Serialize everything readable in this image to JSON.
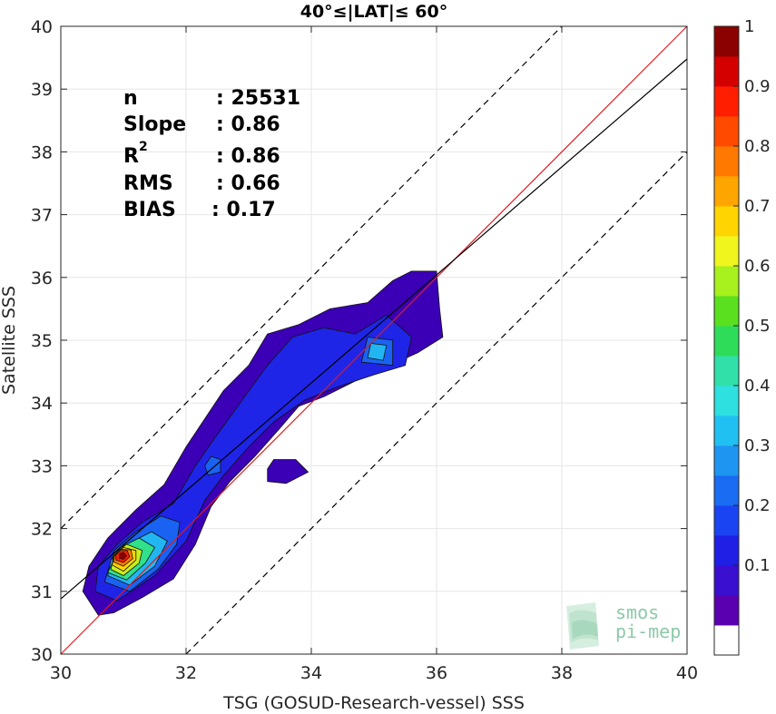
{
  "chart_data": {
    "type": "contour-scatter",
    "title": "40°≤|LAT|≤ 60°",
    "xlabel": "TSG (GOSUD-Research-vessel) SSS",
    "ylabel": "Satellite SSS",
    "xlim": [
      30,
      40
    ],
    "ylim": [
      30,
      40
    ],
    "xticks": [
      "30",
      "32",
      "34",
      "36",
      "38",
      "40"
    ],
    "yticks": [
      "30",
      "31",
      "32",
      "33",
      "34",
      "35",
      "36",
      "37",
      "38",
      "39",
      "40"
    ],
    "grid": true,
    "stats": [
      {
        "label": "n",
        "value": ": 25531"
      },
      {
        "label": "Slope",
        "value": ": 0.86"
      },
      {
        "label": "R",
        "sup": "2",
        "value": ": 0.86"
      },
      {
        "label": "RMS",
        "value": ": 0.66"
      },
      {
        "label": "BIAS",
        "value": ": 0.17"
      }
    ],
    "lines": [
      {
        "name": "one-to-one",
        "color": "#e31a1c",
        "style": "solid",
        "slope": 1,
        "intercept": 0
      },
      {
        "name": "regression",
        "color": "#000000",
        "style": "solid",
        "slope": 0.86,
        "intercept": 5.08
      },
      {
        "name": "upper-bound",
        "color": "#000000",
        "style": "dashed",
        "slope": 1,
        "intercept": 2.0
      },
      {
        "name": "lower-bound",
        "color": "#000000",
        "style": "dashed",
        "slope": 1,
        "intercept": -2.0
      }
    ],
    "density_contours": [
      {
        "level": 0.05,
        "color": "#3b00b5",
        "polygons": [
          [
            [
              30.35,
              31.0
            ],
            [
              30.6,
              30.62
            ],
            [
              30.85,
              30.66
            ],
            [
              31.3,
              30.9
            ],
            [
              31.8,
              31.2
            ],
            [
              32.15,
              31.75
            ],
            [
              32.4,
              32.35
            ],
            [
              32.7,
              32.75
            ],
            [
              33.1,
              33.15
            ],
            [
              33.5,
              33.6
            ],
            [
              33.8,
              33.95
            ],
            [
              34.2,
              34.1
            ],
            [
              34.7,
              34.35
            ],
            [
              35.15,
              34.55
            ],
            [
              35.7,
              34.8
            ],
            [
              36.1,
              35.05
            ],
            [
              36.05,
              35.5
            ],
            [
              36.0,
              36.1
            ],
            [
              35.6,
              36.1
            ],
            [
              35.3,
              35.95
            ],
            [
              34.9,
              35.6
            ],
            [
              34.3,
              35.5
            ],
            [
              33.8,
              35.25
            ],
            [
              33.3,
              35.1
            ],
            [
              33.0,
              34.6
            ],
            [
              32.6,
              34.2
            ],
            [
              32.3,
              33.75
            ],
            [
              32.0,
              33.3
            ],
            [
              31.65,
              32.7
            ],
            [
              31.2,
              32.3
            ],
            [
              30.75,
              31.85
            ],
            [
              30.45,
              31.4
            ],
            [
              30.35,
              31.0
            ]
          ],
          [
            [
              33.3,
              32.75
            ],
            [
              33.6,
              32.72
            ],
            [
              33.95,
              32.9
            ],
            [
              33.75,
              33.1
            ],
            [
              33.4,
              33.1
            ],
            [
              33.3,
              32.95
            ],
            [
              33.3,
              32.75
            ]
          ]
        ]
      },
      {
        "level": 0.15,
        "color": "#1f25e6",
        "polygons": [
          [
            [
              30.55,
              31.0
            ],
            [
              30.9,
              30.85
            ],
            [
              31.5,
              31.25
            ],
            [
              32.0,
              31.8
            ],
            [
              32.3,
              32.45
            ],
            [
              32.6,
              32.85
            ],
            [
              33.0,
              33.3
            ],
            [
              33.4,
              33.7
            ],
            [
              33.9,
              34.05
            ],
            [
              34.4,
              34.25
            ],
            [
              35.0,
              34.45
            ],
            [
              35.5,
              34.6
            ],
            [
              35.6,
              35.05
            ],
            [
              35.2,
              35.4
            ],
            [
              34.7,
              35.1
            ],
            [
              34.2,
              35.2
            ],
            [
              33.7,
              35.05
            ],
            [
              33.3,
              34.6
            ],
            [
              32.9,
              34.05
            ],
            [
              32.5,
              33.5
            ],
            [
              32.15,
              33.0
            ],
            [
              31.8,
              32.4
            ],
            [
              31.3,
              32.1
            ],
            [
              30.9,
              31.75
            ],
            [
              30.6,
              31.4
            ],
            [
              30.55,
              31.0
            ]
          ]
        ]
      },
      {
        "level": 0.25,
        "color": "#1a63f2",
        "polygons": [
          [
            [
              30.7,
              31.15
            ],
            [
              31.1,
              31.0
            ],
            [
              31.55,
              31.35
            ],
            [
              31.85,
              31.75
            ],
            [
              31.9,
              32.1
            ],
            [
              31.6,
              32.2
            ],
            [
              31.2,
              31.95
            ],
            [
              30.85,
              31.65
            ],
            [
              30.7,
              31.15
            ]
          ],
          [
            [
              32.35,
              32.85
            ],
            [
              32.55,
              32.9
            ],
            [
              32.55,
              33.1
            ],
            [
              32.4,
              33.15
            ],
            [
              32.3,
              33.0
            ],
            [
              32.35,
              32.85
            ]
          ],
          [
            [
              34.8,
              34.65
            ],
            [
              35.3,
              34.6
            ],
            [
              35.3,
              35.0
            ],
            [
              34.9,
              35.05
            ],
            [
              34.8,
              34.65
            ]
          ]
        ]
      },
      {
        "level": 0.35,
        "color": "#21b6f2",
        "polygons": [
          [
            [
              30.75,
              31.25
            ],
            [
              31.1,
              31.1
            ],
            [
              31.5,
              31.4
            ],
            [
              31.7,
              31.8
            ],
            [
              31.45,
              31.95
            ],
            [
              31.05,
              31.75
            ],
            [
              30.8,
              31.5
            ],
            [
              30.75,
              31.25
            ]
          ],
          [
            [
              34.9,
              34.72
            ],
            [
              35.15,
              34.68
            ],
            [
              35.2,
              34.92
            ],
            [
              34.95,
              34.95
            ],
            [
              34.9,
              34.72
            ]
          ]
        ]
      },
      {
        "level": 0.45,
        "color": "#30e08a",
        "polygons": [
          [
            [
              30.75,
              31.3
            ],
            [
              31.05,
              31.18
            ],
            [
              31.35,
              31.45
            ],
            [
              31.5,
              31.7
            ],
            [
              31.25,
              31.85
            ],
            [
              30.95,
              31.7
            ],
            [
              30.75,
              31.3
            ]
          ]
        ]
      },
      {
        "level": 0.55,
        "color": "#c8f01e",
        "polygons": [
          [
            [
              30.8,
              31.35
            ],
            [
              31.0,
              31.25
            ],
            [
              31.25,
              31.45
            ],
            [
              31.3,
              31.65
            ],
            [
              31.05,
              31.75
            ],
            [
              30.85,
              31.6
            ],
            [
              30.8,
              31.35
            ]
          ]
        ]
      },
      {
        "level": 0.65,
        "color": "#ffd400",
        "polygons": [
          [
            [
              30.82,
              31.42
            ],
            [
              31.0,
              31.32
            ],
            [
              31.2,
              31.5
            ],
            [
              31.2,
              31.65
            ],
            [
              31.0,
              31.7
            ],
            [
              30.85,
              31.58
            ],
            [
              30.82,
              31.42
            ]
          ]
        ]
      },
      {
        "level": 0.75,
        "color": "#ff7d00",
        "polygons": [
          [
            [
              30.84,
              31.47
            ],
            [
              31.0,
              31.4
            ],
            [
              31.15,
              31.52
            ],
            [
              31.12,
              31.66
            ],
            [
              30.96,
              31.67
            ],
            [
              30.86,
              31.57
            ],
            [
              30.84,
              31.47
            ]
          ]
        ]
      },
      {
        "level": 0.85,
        "color": "#ff1e00",
        "polygons": [
          [
            [
              30.88,
              31.5
            ],
            [
              31.0,
              31.46
            ],
            [
              31.1,
              31.55
            ],
            [
              31.06,
              31.65
            ],
            [
              30.95,
              31.65
            ],
            [
              30.88,
              31.58
            ],
            [
              30.88,
              31.5
            ]
          ]
        ]
      },
      {
        "level": 0.95,
        "color": "#8b0000",
        "polygons": [
          [
            [
              30.93,
              31.53
            ],
            [
              31.0,
              31.51
            ],
            [
              31.05,
              31.57
            ],
            [
              31.0,
              31.62
            ],
            [
              30.94,
              31.6
            ],
            [
              30.93,
              31.53
            ]
          ]
        ]
      }
    ],
    "colorbar": {
      "ticks": [
        "0.1",
        "0.2",
        "0.3",
        "0.4",
        "0.5",
        "0.6",
        "0.7",
        "0.8",
        "0.9",
        "1"
      ],
      "colors": [
        "#ffffff",
        "#5a00b0",
        "#3a0fcf",
        "#1f1fe6",
        "#1a44f2",
        "#1a6cf2",
        "#1f95f2",
        "#21c0f2",
        "#2ee0e0",
        "#30e0a8",
        "#2edc5a",
        "#5ae01e",
        "#a8f01e",
        "#f0f51e",
        "#ffd400",
        "#ffa500",
        "#ff7800",
        "#ff4a00",
        "#ff1e00",
        "#d40000",
        "#8b0000"
      ]
    }
  },
  "logo": {
    "line1": "smos",
    "line2": "pi-mep"
  }
}
